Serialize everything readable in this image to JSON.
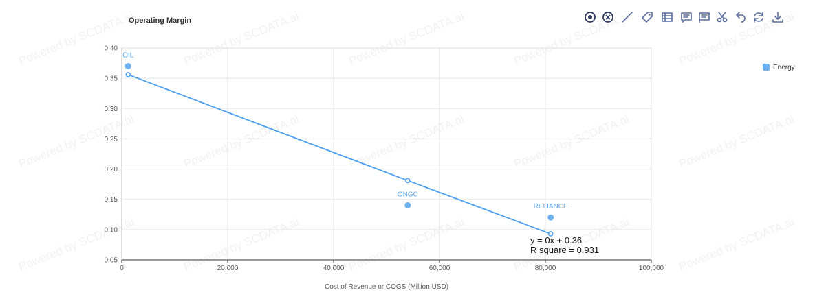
{
  "title": "Operating Margin",
  "watermark_text": "Powered by SCDATA.ai",
  "toolbar": [
    {
      "name": "target-icon"
    },
    {
      "name": "close-circle-icon"
    },
    {
      "name": "line-icon"
    },
    {
      "name": "tag-icon"
    },
    {
      "name": "table-icon"
    },
    {
      "name": "comment-icon"
    },
    {
      "name": "flag-comment-icon"
    },
    {
      "name": "scissors-icon"
    },
    {
      "name": "undo-icon"
    },
    {
      "name": "refresh-icon"
    },
    {
      "name": "download-icon"
    }
  ],
  "chart_data": {
    "type": "scatter",
    "title": "Operating Margin",
    "xlabel": "Cost of Revenue or COGS (Million USD)",
    "ylabel": "",
    "xlim": [
      0,
      100000
    ],
    "ylim": [
      0.05,
      0.4
    ],
    "x_ticks": [
      0,
      20000,
      40000,
      60000,
      80000,
      100000
    ],
    "x_tick_labels": [
      "0",
      "20,000",
      "40,000",
      "60,000",
      "80,000",
      "100,000"
    ],
    "y_ticks": [
      0.05,
      0.1,
      0.15,
      0.2,
      0.25,
      0.3,
      0.35,
      0.4
    ],
    "y_tick_labels": [
      "0.05",
      "0.10",
      "0.15",
      "0.20",
      "0.25",
      "0.30",
      "0.35",
      "0.40"
    ],
    "grid": true,
    "legend_position": "right",
    "series": [
      {
        "name": "Energy",
        "color": "#6cb2f2",
        "points": [
          {
            "label": "OIL",
            "x": 1200,
            "y": 0.37
          },
          {
            "label": "ONGC",
            "x": 54000,
            "y": 0.14
          },
          {
            "label": "RELIANCE",
            "x": 81000,
            "y": 0.12
          }
        ]
      }
    ],
    "trendline": {
      "color": "#4a9ff0",
      "points": [
        {
          "x": 1200,
          "y": 0.356
        },
        {
          "x": 54000,
          "y": 0.181
        },
        {
          "x": 81000,
          "y": 0.093
        }
      ],
      "equation": "y = 0x + 0.36",
      "r_square": "R square = 0.931"
    }
  }
}
